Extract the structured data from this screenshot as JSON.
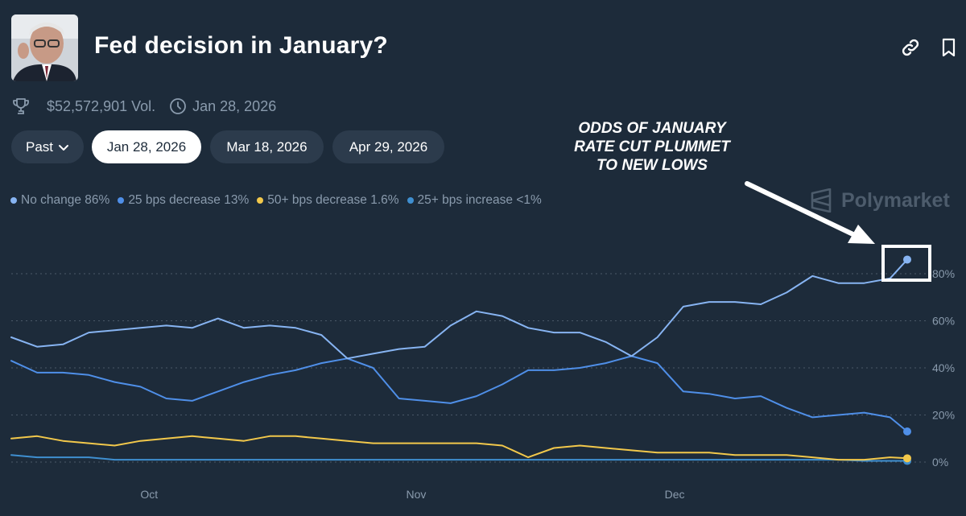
{
  "market": {
    "title": "Fed decision in January?",
    "volume": "$52,572,901 Vol.",
    "end_date": "Jan 28, 2026"
  },
  "icons": {
    "volume": "trophy-icon",
    "date": "clock-icon",
    "link": "link-icon",
    "bookmark": "bookmark-icon",
    "past_chevron": "chevron-down-icon"
  },
  "tabs": [
    {
      "label": "Past",
      "active": false
    },
    {
      "label": "Jan 28, 2026",
      "active": true
    },
    {
      "label": "Mar 18, 2026",
      "active": false
    },
    {
      "label": "Apr 29, 2026",
      "active": false
    }
  ],
  "annotation": {
    "lines": [
      "ODDS OF JANUARY",
      "RATE CUT PLUMMET",
      "TO NEW LOWS"
    ]
  },
  "watermark": "Polymarket",
  "colors": {
    "background": "#1d2b3a",
    "no_change": "#87b4f2",
    "bps25_decrease": "#4f8fe8",
    "bps50_decrease": "#f2c84b",
    "bps25_increase": "#3f8fd0",
    "grid": "#4a5868",
    "text_muted": "#8a9bad"
  },
  "chart_data": {
    "type": "line",
    "title": "",
    "xlabel": "",
    "ylabel": "",
    "ylim": [
      0,
      90
    ],
    "y_ticks": [
      "0%",
      "20%",
      "40%",
      "60%",
      "80%"
    ],
    "x_ticks": [
      "Oct",
      "Nov",
      "Dec"
    ],
    "grid": true,
    "legend_position": "top-left",
    "legend": [
      "No change 86%",
      "25 bps decrease 13%",
      "50+ bps decrease 1.6%",
      "25+ bps increase <1%"
    ],
    "series": [
      {
        "name": "No change",
        "color": "#87b4f2",
        "x": [
          "2025-09-15",
          "2025-09-18",
          "2025-09-21",
          "2025-09-24",
          "2025-09-27",
          "2025-09-30",
          "2025-10-03",
          "2025-10-06",
          "2025-10-09",
          "2025-10-12",
          "2025-10-15",
          "2025-10-18",
          "2025-10-21",
          "2025-10-24",
          "2025-10-27",
          "2025-10-30",
          "2025-11-02",
          "2025-11-05",
          "2025-11-08",
          "2025-11-11",
          "2025-11-14",
          "2025-11-17",
          "2025-11-20",
          "2025-11-23",
          "2025-11-26",
          "2025-11-29",
          "2025-12-02",
          "2025-12-05",
          "2025-12-08",
          "2025-12-11",
          "2025-12-14",
          "2025-12-17",
          "2025-12-20",
          "2025-12-23",
          "2025-12-26",
          "2025-12-28"
        ],
        "values": [
          53,
          49,
          50,
          55,
          56,
          57,
          58,
          57,
          61,
          57,
          58,
          57,
          54,
          44,
          46,
          48,
          49,
          58,
          64,
          62,
          57,
          55,
          55,
          51,
          45,
          53,
          66,
          68,
          68,
          67,
          72,
          79,
          76,
          76,
          78,
          86
        ]
      },
      {
        "name": "25 bps decrease",
        "color": "#4f8fe8",
        "x": [
          "2025-09-15",
          "2025-09-18",
          "2025-09-21",
          "2025-09-24",
          "2025-09-27",
          "2025-09-30",
          "2025-10-03",
          "2025-10-06",
          "2025-10-09",
          "2025-10-12",
          "2025-10-15",
          "2025-10-18",
          "2025-10-21",
          "2025-10-24",
          "2025-10-27",
          "2025-10-30",
          "2025-11-02",
          "2025-11-05",
          "2025-11-08",
          "2025-11-11",
          "2025-11-14",
          "2025-11-17",
          "2025-11-20",
          "2025-11-23",
          "2025-11-26",
          "2025-11-29",
          "2025-12-02",
          "2025-12-05",
          "2025-12-08",
          "2025-12-11",
          "2025-12-14",
          "2025-12-17",
          "2025-12-20",
          "2025-12-23",
          "2025-12-26",
          "2025-12-28"
        ],
        "values": [
          43,
          38,
          38,
          37,
          34,
          32,
          27,
          26,
          30,
          34,
          37,
          39,
          42,
          44,
          40,
          27,
          26,
          25,
          28,
          33,
          39,
          39,
          40,
          42,
          45,
          42,
          30,
          29,
          27,
          28,
          23,
          19,
          20,
          21,
          19,
          13
        ]
      },
      {
        "name": "50+ bps decrease",
        "color": "#f2c84b",
        "x": [
          "2025-09-15",
          "2025-09-18",
          "2025-09-21",
          "2025-09-24",
          "2025-09-27",
          "2025-09-30",
          "2025-10-03",
          "2025-10-06",
          "2025-10-09",
          "2025-10-12",
          "2025-10-15",
          "2025-10-18",
          "2025-10-21",
          "2025-10-24",
          "2025-10-27",
          "2025-10-30",
          "2025-11-02",
          "2025-11-05",
          "2025-11-08",
          "2025-11-11",
          "2025-11-14",
          "2025-11-17",
          "2025-11-20",
          "2025-11-23",
          "2025-11-26",
          "2025-11-29",
          "2025-12-02",
          "2025-12-05",
          "2025-12-08",
          "2025-12-11",
          "2025-12-14",
          "2025-12-17",
          "2025-12-20",
          "2025-12-23",
          "2025-12-26",
          "2025-12-28"
        ],
        "values": [
          10,
          11,
          9,
          8,
          7,
          9,
          10,
          11,
          10,
          9,
          11,
          11,
          10,
          9,
          8,
          8,
          8,
          8,
          8,
          7,
          2,
          6,
          7,
          6,
          5,
          4,
          4,
          4,
          3,
          3,
          3,
          2,
          1,
          1,
          2,
          1.6
        ]
      },
      {
        "name": "25+ bps increase",
        "color": "#3f8fd0",
        "x": [
          "2025-09-15",
          "2025-09-18",
          "2025-09-21",
          "2025-09-24",
          "2025-09-27",
          "2025-09-30",
          "2025-10-03",
          "2025-10-06",
          "2025-10-09",
          "2025-10-12",
          "2025-10-15",
          "2025-10-18",
          "2025-10-21",
          "2025-10-24",
          "2025-10-27",
          "2025-10-30",
          "2025-11-02",
          "2025-11-05",
          "2025-11-08",
          "2025-11-11",
          "2025-11-14",
          "2025-11-17",
          "2025-11-20",
          "2025-11-23",
          "2025-11-26",
          "2025-11-29",
          "2025-12-02",
          "2025-12-05",
          "2025-12-08",
          "2025-12-11",
          "2025-12-14",
          "2025-12-17",
          "2025-12-20",
          "2025-12-23",
          "2025-12-26",
          "2025-12-28"
        ],
        "values": [
          3,
          2,
          2,
          2,
          1,
          1,
          1,
          1,
          1,
          1,
          1,
          1,
          1,
          1,
          1,
          1,
          1,
          1,
          1,
          1,
          1,
          1,
          1,
          1,
          1,
          1,
          1,
          1,
          1,
          1,
          1,
          1,
          1,
          0.5,
          0.5,
          0.5
        ]
      }
    ]
  }
}
